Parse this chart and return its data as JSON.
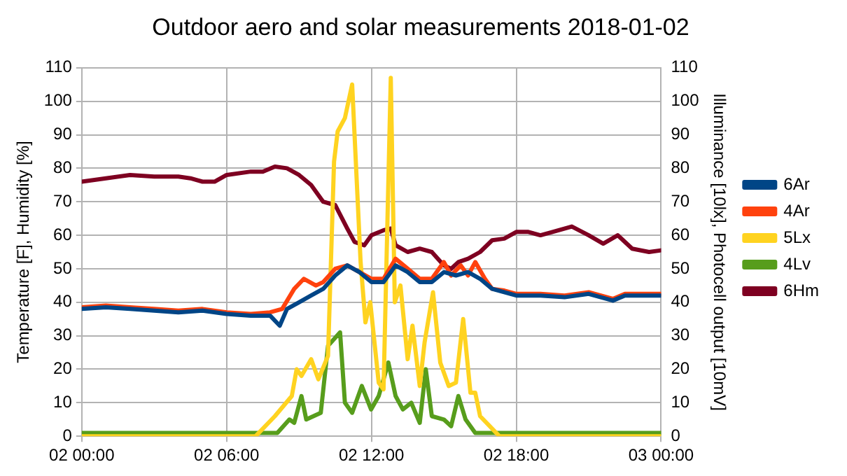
{
  "chart_data": {
    "type": "line",
    "title": "Outdoor aero and solar measurements 2018-01-02",
    "ylabel": "Temperature [F], Humidity [%]",
    "y2label": "Illuminance [10lx], Photocell output [10mV]",
    "xlim": [
      "2018-01-02T00:00",
      "2018-01-03T00:00"
    ],
    "xticks": [
      {
        "value": "2018-01-02T00:00",
        "label": "02 00:00"
      },
      {
        "value": "2018-01-02T06:00",
        "label": "02 06:00"
      },
      {
        "value": "2018-01-02T12:00",
        "label": "02 12:00"
      },
      {
        "value": "2018-01-02T18:00",
        "label": "02 18:00"
      },
      {
        "value": "2018-01-03T00:00",
        "label": "03 00:00"
      }
    ],
    "ylim": [
      0,
      110
    ],
    "yticks": [
      0,
      10,
      20,
      30,
      40,
      50,
      60,
      70,
      80,
      90,
      100,
      110
    ],
    "y2lim": [
      0,
      110
    ],
    "y2ticks": [
      0,
      10,
      20,
      30,
      40,
      50,
      60,
      70,
      80,
      90,
      100,
      110
    ],
    "grid": true,
    "legend": "right",
    "line_style": "solid",
    "series": [
      {
        "name": "6Ar",
        "color": "#004586",
        "x": [
          "2018-01-02T00:00",
          "2018-01-02T01:00",
          "2018-01-02T02:00",
          "2018-01-02T03:00",
          "2018-01-02T04:00",
          "2018-01-02T05:00",
          "2018-01-02T06:00",
          "2018-01-02T07:00",
          "2018-01-02T07:48",
          "2018-01-02T08:12",
          "2018-01-02T08:30",
          "2018-01-02T09:00",
          "2018-01-02T09:30",
          "2018-01-02T10:00",
          "2018-01-02T10:30",
          "2018-01-02T11:00",
          "2018-01-02T11:30",
          "2018-01-02T12:00",
          "2018-01-02T12:30",
          "2018-01-02T13:00",
          "2018-01-02T13:30",
          "2018-01-02T14:00",
          "2018-01-02T14:30",
          "2018-01-02T15:00",
          "2018-01-02T15:30",
          "2018-01-02T16:00",
          "2018-01-02T16:30",
          "2018-01-02T17:00",
          "2018-01-02T17:30",
          "2018-01-02T18:00",
          "2018-01-02T19:00",
          "2018-01-02T20:00",
          "2018-01-02T21:00",
          "2018-01-02T22:00",
          "2018-01-02T22:30",
          "2018-01-03T00:00"
        ],
        "values": [
          38,
          38.5,
          38,
          37.5,
          37,
          37.5,
          36.5,
          36,
          36,
          33,
          38,
          40,
          42,
          44,
          48,
          51,
          49,
          46,
          46,
          51,
          49,
          46,
          46,
          49,
          48,
          49,
          47,
          44,
          43,
          42,
          42,
          41.5,
          42.5,
          40.5,
          42,
          42
        ]
      },
      {
        "name": "4Ar",
        "color": "#ff420e",
        "x": [
          "2018-01-02T00:00",
          "2018-01-02T01:00",
          "2018-01-02T02:00",
          "2018-01-02T03:00",
          "2018-01-02T04:00",
          "2018-01-02T05:00",
          "2018-01-02T06:00",
          "2018-01-02T07:00",
          "2018-01-02T07:48",
          "2018-01-02T08:18",
          "2018-01-02T08:48",
          "2018-01-02T09:12",
          "2018-01-02T09:42",
          "2018-01-02T10:00",
          "2018-01-02T10:30",
          "2018-01-02T11:00",
          "2018-01-02T11:30",
          "2018-01-02T12:00",
          "2018-01-02T12:30",
          "2018-01-02T13:00",
          "2018-01-02T13:30",
          "2018-01-02T14:00",
          "2018-01-02T14:30",
          "2018-01-02T15:00",
          "2018-01-02T15:18",
          "2018-01-02T15:42",
          "2018-01-02T16:00",
          "2018-01-02T16:18",
          "2018-01-02T16:42",
          "2018-01-02T17:00",
          "2018-01-02T17:30",
          "2018-01-02T18:00",
          "2018-01-02T19:00",
          "2018-01-02T20:00",
          "2018-01-02T21:00",
          "2018-01-02T22:00",
          "2018-01-02T22:30",
          "2018-01-03T00:00"
        ],
        "values": [
          38.5,
          39,
          38.5,
          38,
          37.5,
          38,
          37,
          36.5,
          37,
          38,
          44,
          47,
          45,
          46,
          50,
          51,
          49,
          47,
          47,
          53,
          50,
          47,
          47,
          52,
          48,
          51,
          48,
          52,
          47,
          44,
          43.5,
          42.5,
          42.5,
          42,
          43,
          41,
          42.5,
          42.5
        ]
      },
      {
        "name": "5Lx",
        "color": "#ffd320",
        "x": [
          "2018-01-02T00:00",
          "2018-01-02T07:12",
          "2018-01-02T08:00",
          "2018-01-02T08:42",
          "2018-01-02T08:54",
          "2018-01-02T09:06",
          "2018-01-02T09:30",
          "2018-01-02T09:48",
          "2018-01-02T10:12",
          "2018-01-02T10:27",
          "2018-01-02T10:36",
          "2018-01-02T10:54",
          "2018-01-02T11:12",
          "2018-01-02T11:33",
          "2018-01-02T11:45",
          "2018-01-02T11:57",
          "2018-01-02T12:18",
          "2018-01-02T12:30",
          "2018-01-02T12:48",
          "2018-01-02T12:58",
          "2018-01-02T13:12",
          "2018-01-02T13:30",
          "2018-01-02T13:42",
          "2018-01-02T14:00",
          "2018-01-02T14:12",
          "2018-01-02T14:33",
          "2018-01-02T14:51",
          "2018-01-02T15:12",
          "2018-01-02T15:30",
          "2018-01-02T15:48",
          "2018-01-02T16:06",
          "2018-01-02T16:18",
          "2018-01-02T16:30",
          "2018-01-02T17:18",
          "2018-01-03T00:00"
        ],
        "values": [
          0,
          0,
          6,
          12,
          20,
          18,
          23,
          17,
          24,
          82,
          91,
          95,
          105,
          52,
          34,
          40,
          16,
          14,
          107,
          40,
          45,
          23,
          33,
          15,
          28,
          43,
          22,
          15,
          16,
          35,
          13,
          13,
          6,
          0,
          0
        ]
      },
      {
        "name": "4Lv",
        "color": "#579d1c",
        "x": [
          "2018-01-02T00:00",
          "2018-01-02T08:06",
          "2018-01-02T08:36",
          "2018-01-02T08:48",
          "2018-01-02T09:06",
          "2018-01-02T09:18",
          "2018-01-02T09:54",
          "2018-01-02T10:12",
          "2018-01-02T10:42",
          "2018-01-02T10:54",
          "2018-01-02T11:12",
          "2018-01-02T11:36",
          "2018-01-02T11:59",
          "2018-01-02T12:18",
          "2018-01-02T12:42",
          "2018-01-02T13:00",
          "2018-01-02T13:18",
          "2018-01-02T13:39",
          "2018-01-02T14:00",
          "2018-01-02T14:15",
          "2018-01-02T14:30",
          "2018-01-02T15:00",
          "2018-01-02T15:18",
          "2018-01-02T15:36",
          "2018-01-02T15:54",
          "2018-01-02T16:18",
          "2018-01-03T00:00"
        ],
        "values": [
          1,
          1,
          5,
          4,
          12,
          5,
          7,
          27,
          31,
          10,
          7,
          15,
          8,
          12,
          22,
          12,
          8,
          10,
          4,
          20,
          6,
          5,
          3,
          12,
          5,
          1,
          1
        ]
      },
      {
        "name": "6Hm",
        "color": "#7e0021",
        "x": [
          "2018-01-02T00:00",
          "2018-01-02T01:00",
          "2018-01-02T02:00",
          "2018-01-02T03:00",
          "2018-01-02T04:00",
          "2018-01-02T04:30",
          "2018-01-02T05:00",
          "2018-01-02T05:30",
          "2018-01-02T06:00",
          "2018-01-02T07:00",
          "2018-01-02T07:30",
          "2018-01-02T08:00",
          "2018-01-02T08:30",
          "2018-01-02T09:00",
          "2018-01-02T09:30",
          "2018-01-02T10:00",
          "2018-01-02T10:30",
          "2018-01-02T11:00",
          "2018-01-02T11:18",
          "2018-01-02T11:42",
          "2018-01-02T12:00",
          "2018-01-02T12:30",
          "2018-01-02T12:48",
          "2018-01-02T13:00",
          "2018-01-02T13:30",
          "2018-01-02T14:00",
          "2018-01-02T14:30",
          "2018-01-02T15:00",
          "2018-01-02T15:18",
          "2018-01-02T15:36",
          "2018-01-02T16:00",
          "2018-01-02T16:30",
          "2018-01-02T17:00",
          "2018-01-02T17:30",
          "2018-01-02T18:00",
          "2018-01-02T18:30",
          "2018-01-02T19:00",
          "2018-01-02T19:30",
          "2018-01-02T20:18",
          "2018-01-02T21:00",
          "2018-01-02T21:36",
          "2018-01-02T22:12",
          "2018-01-02T22:48",
          "2018-01-02T23:30",
          "2018-01-03T00:00"
        ],
        "values": [
          76,
          77,
          78,
          77.5,
          77.5,
          77,
          76,
          76,
          78,
          79,
          79,
          80.5,
          80,
          78,
          75,
          70,
          69,
          62,
          58,
          57,
          60,
          61.5,
          62,
          57,
          55,
          56,
          55,
          51,
          50,
          52,
          53,
          55,
          58.5,
          59,
          61,
          61,
          60,
          61,
          62.6,
          60,
          57.5,
          60,
          56,
          55,
          55.5
        ]
      }
    ]
  }
}
